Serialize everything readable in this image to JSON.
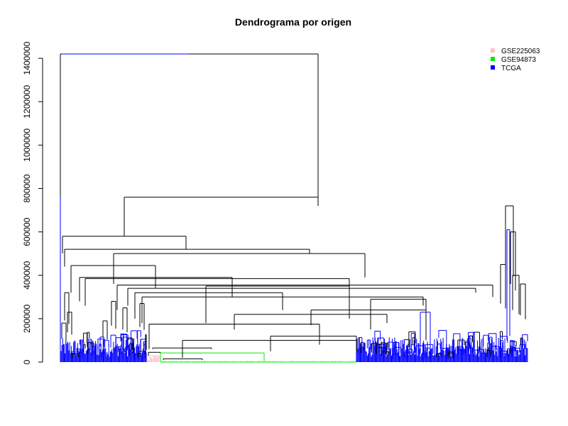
{
  "chart_data": {
    "type": "dendrogram",
    "title": "Dendrograma por origen",
    "xlabel": "",
    "ylabel": "",
    "ylim": [
      0,
      1420000
    ],
    "y_ticks": [
      0,
      200000,
      400000,
      600000,
      800000,
      1000000,
      1200000,
      1400000
    ],
    "y_tick_labels": [
      "0",
      "200000",
      "400000",
      "600000",
      "800000",
      "1000000",
      "1200000",
      "1400000"
    ],
    "grid": false,
    "legend_position": "top-right",
    "legend": [
      {
        "label": "GSE225063",
        "color": "#ffc0cb"
      },
      {
        "label": "GSE94873",
        "color": "#00ee00"
      },
      {
        "label": "TCGA",
        "color": "#0000ff"
      }
    ],
    "root_height": 1420000,
    "main_merges": [
      {
        "group": "root",
        "height": 1420000,
        "color": "#000000"
      },
      {
        "group": "left-main",
        "height": 760000,
        "color": "#000000"
      },
      {
        "group": "right-tcga",
        "height": 720000,
        "color": "#000000"
      },
      {
        "group": "left-tcga-block",
        "height": 580000,
        "color": "#000000"
      },
      {
        "group": "mixed-block",
        "height": 520000,
        "color": "#000000"
      },
      {
        "group": "mixed-sub",
        "height": 500000,
        "color": "#000000"
      },
      {
        "group": "left-sub",
        "height": 445000,
        "color": "#000000"
      },
      {
        "group": "mid-sub",
        "height": 385000,
        "color": "#000000"
      },
      {
        "group": "mid-sub-2",
        "height": 355000,
        "color": "#000000"
      },
      {
        "group": "gse94873-block",
        "height": 40000,
        "color": "#00ee00"
      }
    ],
    "colors": {
      "TCGA": "#0000ff",
      "GSE225063": "#ffc0cb",
      "GSE94873": "#00ee00"
    }
  }
}
